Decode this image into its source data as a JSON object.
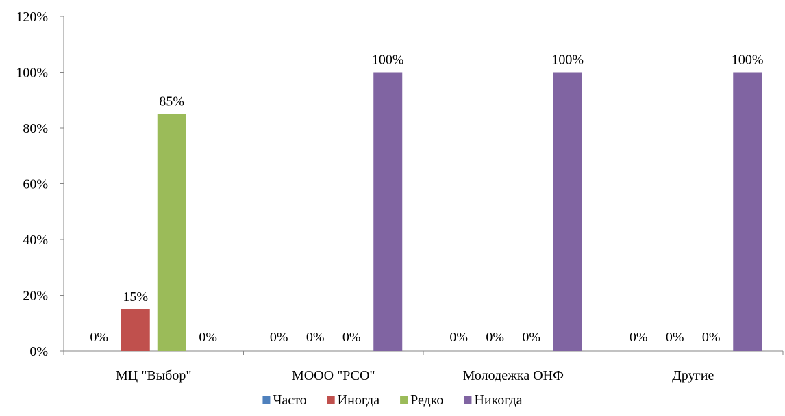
{
  "chart_data": {
    "type": "bar",
    "title": "",
    "xlabel": "",
    "ylabel": "",
    "categories": [
      "МЦ \"Выбор\"",
      "МООО \"РСО\"",
      "Молодежка ОНФ",
      "Другие"
    ],
    "series": [
      {
        "name": "Часто",
        "color": "#4F81BD",
        "values": [
          0,
          0,
          0,
          0
        ],
        "labels": [
          "0%",
          "0%",
          "0%",
          "0%"
        ]
      },
      {
        "name": "Иногда",
        "color": "#C0504D",
        "values": [
          15,
          0,
          0,
          0
        ],
        "labels": [
          "15%",
          "0%",
          "0%",
          "0%"
        ]
      },
      {
        "name": "Редко",
        "color": "#9BBB59",
        "values": [
          85,
          0,
          0,
          0
        ],
        "labels": [
          "85%",
          "0%",
          "0%",
          "0%"
        ]
      },
      {
        "name": "Никогда",
        "color": "#8064A2",
        "values": [
          0,
          100,
          100,
          100
        ],
        "labels": [
          "0%",
          "100%",
          "100%",
          "100%"
        ]
      }
    ],
    "ylim": [
      0,
      120
    ],
    "yticks": [
      0,
      20,
      40,
      60,
      80,
      100,
      120
    ],
    "ytick_labels": [
      "0%",
      "20%",
      "40%",
      "60%",
      "80%",
      "100%",
      "120%"
    ],
    "grid": false,
    "legend_position": "bottom"
  }
}
